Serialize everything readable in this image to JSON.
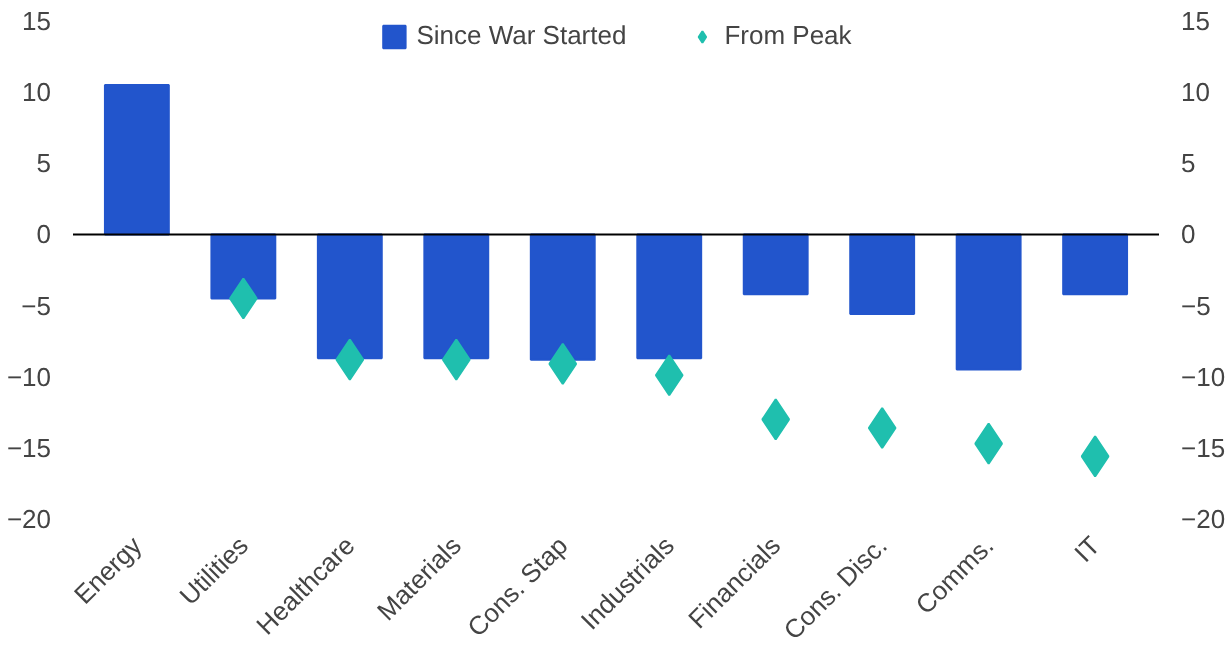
{
  "chart_data": {
    "type": "bar",
    "categories": [
      "Energy",
      "Utilities",
      "Healthcare",
      "Materials",
      "Cons. Stap",
      "Industrials",
      "Financials",
      "Cons. Disc.",
      "Comms.",
      "IT"
    ],
    "series": [
      {
        "name": "Since War Started",
        "color": "#2255cc",
        "values": [
          10.5,
          -4.5,
          -8.7,
          -8.7,
          -8.8,
          -8.7,
          -4.2,
          -5.6,
          -9.5,
          -4.2
        ]
      },
      {
        "name": "From Peak",
        "type": "scatter",
        "marker": "diamond",
        "color": "#1fbfae",
        "values": [
          null,
          -4.5,
          -8.8,
          -8.8,
          -9.1,
          -9.9,
          -13,
          -13.6,
          -14.7,
          -15.6
        ]
      }
    ],
    "ylim": [
      -20,
      15
    ],
    "yticks": [
      -20,
      -15,
      -10,
      -5,
      0,
      5,
      10,
      15
    ],
    "y2lim": [
      -20,
      15
    ],
    "y2ticks": [
      -20,
      -15,
      -10,
      -5,
      0,
      5,
      10,
      15
    ],
    "ref_lines": [
      {
        "axis": "y",
        "value": 0,
        "color": "#000000"
      }
    ],
    "grid": false,
    "legend": "top"
  }
}
